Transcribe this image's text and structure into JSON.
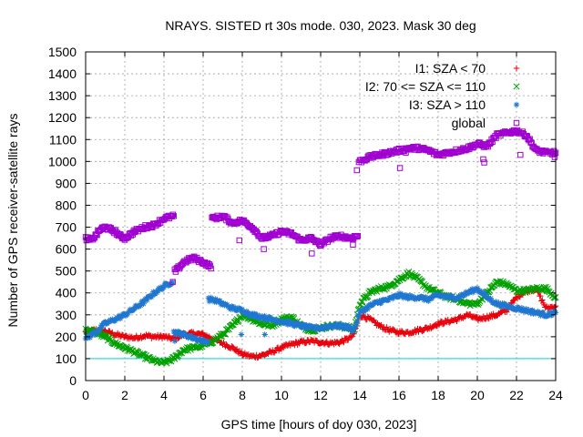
{
  "chart_data": {
    "type": "scatter",
    "title": "NRAYS. SISTED rt 30s mode. 030, 2023. Mask 30 deg",
    "xlabel": "GPS time [hours of doy 030, 2023]",
    "ylabel": "Number of GPS receiver-satellite rays",
    "xlim": [
      0,
      24
    ],
    "ylim": [
      0,
      1500
    ],
    "xticks": [
      0,
      2,
      4,
      6,
      8,
      10,
      12,
      14,
      16,
      18,
      20,
      22,
      24
    ],
    "yticks": [
      0,
      100,
      200,
      300,
      400,
      500,
      600,
      700,
      800,
      900,
      1000,
      1100,
      1200,
      1300,
      1400,
      1500
    ],
    "grid": true,
    "legend_position": "top-right",
    "reference_line": {
      "y": 100,
      "color": "#00d8d8"
    },
    "series": [
      {
        "name": "I1: SZA < 70",
        "marker": "+",
        "color": "#e8000b",
        "x": [
          0,
          0.5,
          1,
          1.5,
          2,
          2.5,
          3,
          3.5,
          4,
          4.5,
          5,
          5.5,
          6,
          6.5,
          7,
          7.5,
          8,
          8.5,
          9,
          9.5,
          10,
          10.5,
          11,
          11.5,
          12,
          12.5,
          13,
          13.5,
          13.7,
          14,
          14.5,
          15,
          15.5,
          16,
          16.5,
          17,
          17.5,
          18,
          18.5,
          19,
          19.5,
          20,
          20.5,
          21,
          21.5,
          22,
          22.5,
          23,
          23.5,
          24
        ],
        "y": [
          220,
          230,
          225,
          210,
          200,
          195,
          205,
          200,
          200,
          190,
          210,
          215,
          210,
          190,
          170,
          150,
          120,
          110,
          115,
          130,
          150,
          165,
          175,
          180,
          175,
          170,
          175,
          195,
          210,
          300,
          280,
          250,
          230,
          220,
          220,
          230,
          240,
          260,
          270,
          280,
          300,
          280,
          290,
          300,
          320,
          380,
          410,
          420,
          330,
          340
        ]
      },
      {
        "name": "I2: 70 <= SZA <= 110",
        "marker": "x",
        "color": "#00a000",
        "x": [
          0,
          0.5,
          1,
          1.5,
          2,
          2.5,
          3,
          3.5,
          4,
          4.5,
          5,
          5.5,
          6,
          6.5,
          7,
          7.5,
          8,
          8.5,
          9,
          9.5,
          10,
          10.5,
          11,
          11.5,
          12,
          12.5,
          13,
          13.5,
          13.7,
          14,
          14.5,
          15,
          15.5,
          16,
          16.5,
          17,
          17.5,
          18,
          18.5,
          19,
          19.5,
          20,
          20.5,
          21,
          21.5,
          22,
          22.5,
          23,
          23.5,
          24
        ],
        "y": [
          230,
          220,
          200,
          170,
          150,
          130,
          110,
          90,
          80,
          100,
          140,
          150,
          160,
          180,
          210,
          250,
          300,
          280,
          260,
          250,
          280,
          290,
          250,
          230,
          240,
          250,
          250,
          240,
          230,
          350,
          400,
          420,
          430,
          460,
          490,
          460,
          420,
          400,
          380,
          370,
          350,
          350,
          400,
          450,
          440,
          410,
          410,
          420,
          420,
          380
        ]
      },
      {
        "name": "I3: SZA > 110",
        "marker": "*",
        "color": "#1f77d0",
        "x": [
          0,
          0.5,
          1,
          1.5,
          2,
          2.5,
          3,
          3.5,
          4,
          4.4,
          4.6,
          5,
          5.5,
          6,
          6.5,
          7,
          7.5,
          8,
          8.5,
          9,
          9.5,
          10,
          10.5,
          11,
          11.5,
          12,
          12.5,
          13,
          13.5,
          13.7,
          14,
          14.5,
          15,
          15.5,
          16,
          16.5,
          17,
          17.5,
          18,
          18.5,
          19,
          19.5,
          20,
          20.5,
          21,
          21.5,
          22,
          22.5,
          23,
          23.5,
          24
        ],
        "y": [
          190,
          220,
          260,
          280,
          300,
          330,
          360,
          400,
          430,
          450,
          220,
          210,
          195,
          180,
          370,
          350,
          330,
          320,
          300,
          290,
          280,
          270,
          260,
          250,
          240,
          240,
          250,
          250,
          240,
          230,
          310,
          340,
          360,
          370,
          390,
          380,
          380,
          370,
          390,
          380,
          380,
          400,
          420,
          380,
          350,
          340,
          330,
          320,
          310,
          300,
          310
        ]
      },
      {
        "name": "global",
        "marker": "square",
        "color": "#a000d0",
        "x": [
          0,
          0.25,
          0.5,
          0.75,
          1,
          1.25,
          1.5,
          1.75,
          2,
          2.5,
          3,
          3.5,
          4,
          4.5,
          4.6,
          5,
          5.5,
          6,
          6.4,
          6.5,
          7,
          7.5,
          8,
          8.5,
          9,
          9.5,
          10,
          10.5,
          11,
          11.5,
          12,
          12.5,
          13,
          13.5,
          13.9,
          14,
          14.5,
          15,
          15.5,
          16,
          16.5,
          17,
          17.5,
          18,
          18.5,
          19,
          19.5,
          20,
          20.5,
          21,
          21.5,
          22,
          22.5,
          23,
          23.5,
          24
        ],
        "y": [
          650,
          640,
          660,
          690,
          700,
          690,
          680,
          660,
          650,
          680,
          700,
          710,
          740,
          750,
          500,
          540,
          560,
          540,
          520,
          740,
          750,
          720,
          730,
          700,
          650,
          660,
          680,
          670,
          640,
          650,
          620,
          650,
          660,
          650,
          660,
          1000,
          1020,
          1030,
          1040,
          1050,
          1060,
          1060,
          1050,
          1030,
          1040,
          1050,
          1060,
          1080,
          1070,
          1120,
          1130,
          1140,
          1120,
          1050,
          1040,
          1040
        ]
      }
    ],
    "outliers": {
      "global": [
        [
          13.65,
          620
        ],
        [
          13.85,
          960
        ],
        [
          16.05,
          970
        ],
        [
          16.35,
          1040
        ],
        [
          20.3,
          1010
        ],
        [
          20.35,
          995
        ],
        [
          22.2,
          1030
        ],
        [
          23.95,
          1020
        ],
        [
          4.45,
          450
        ],
        [
          7.55,
          720
        ],
        [
          7.85,
          640
        ],
        [
          9.1,
          600
        ],
        [
          11.55,
          580
        ]
      ],
      "I3: SZA > 110": [
        [
          4.55,
          180
        ],
        [
          7.95,
          210
        ],
        [
          9.15,
          210
        ]
      ]
    }
  }
}
